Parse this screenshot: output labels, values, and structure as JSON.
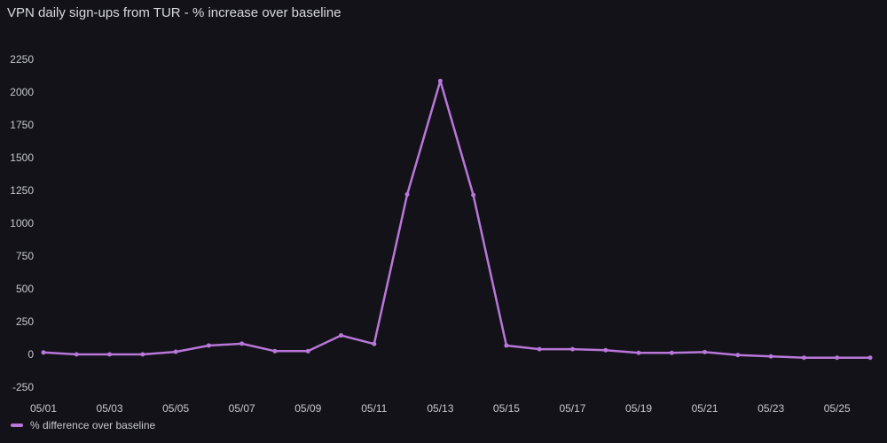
{
  "chart_data": {
    "type": "line",
    "title": "VPN daily sign-ups from TUR - % increase over baseline",
    "x": [
      "05/01",
      "05/02",
      "05/03",
      "05/04",
      "05/05",
      "05/06",
      "05/07",
      "05/08",
      "05/09",
      "05/10",
      "05/11",
      "05/12",
      "05/13",
      "05/14",
      "05/15",
      "05/16",
      "05/17",
      "05/18",
      "05/19",
      "05/20",
      "05/21",
      "05/22",
      "05/23",
      "05/24",
      "05/25",
      "05/26"
    ],
    "x_tick_labels": [
      "05/01",
      "05/03",
      "05/05",
      "05/07",
      "05/09",
      "05/11",
      "05/13",
      "05/15",
      "05/17",
      "05/19",
      "05/21",
      "05/23",
      "05/25"
    ],
    "y_ticks": [
      -250,
      0,
      250,
      500,
      750,
      1000,
      1250,
      1500,
      1750,
      2000,
      2250
    ],
    "ylim": [
      -270,
      2310
    ],
    "series": [
      {
        "name": "% difference over baseline",
        "color": "#b877d9",
        "values": [
          15,
          0,
          0,
          0,
          20,
          68,
          82,
          25,
          25,
          145,
          80,
          1220,
          2085,
          1215,
          68,
          40,
          40,
          32,
          12,
          12,
          18,
          -5,
          -15,
          -25,
          -25,
          -25
        ]
      }
    ],
    "grid": false,
    "legend_position": "bottom-left"
  }
}
